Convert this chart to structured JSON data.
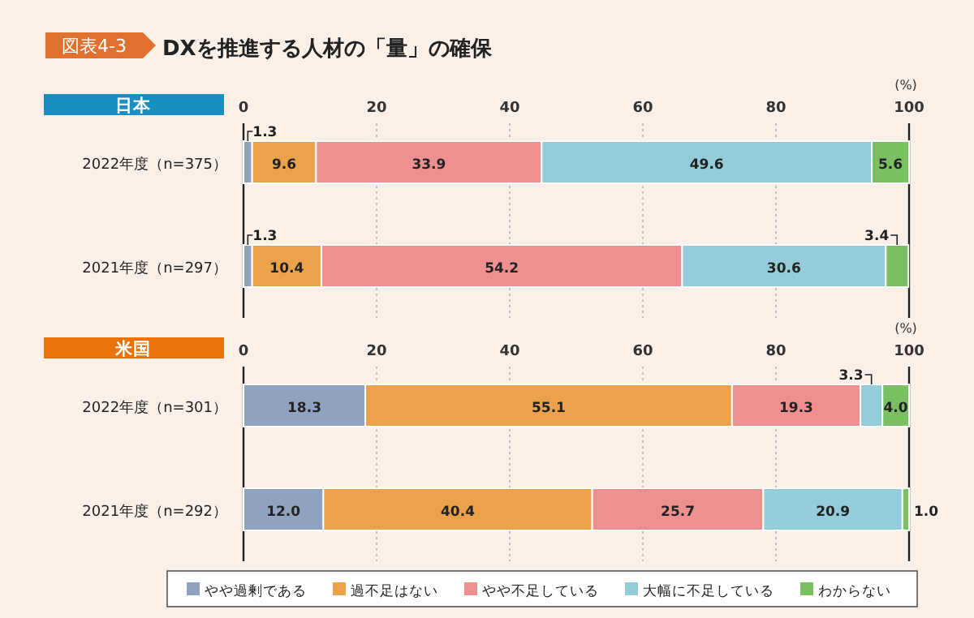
{
  "chart_data": [
    {
      "type": "bar",
      "orientation": "horizontal",
      "stacked": true,
      "title": "DXを推進する人材の「量」の確保",
      "subtitle": "日本",
      "annotations": [
        "図表4-3"
      ],
      "xlabel": "(%)",
      "categories": [
        "2022年度（n=375）",
        "2021年度（n=297）"
      ],
      "xlim": [
        0,
        100
      ],
      "xticks": [
        0,
        20,
        40,
        60,
        80,
        100
      ],
      "grid": "x",
      "series": [
        {
          "color": "#8fa3c0",
          "values": [
            1.3,
            1.3
          ],
          "value_labels": [
            "1.3",
            "1.3"
          ]
        },
        {
          "color": "#eca24a",
          "values": [
            9.6,
            10.4
          ],
          "value_labels": [
            "9.6",
            "10.4"
          ]
        },
        {
          "color": "#ef9090",
          "values": [
            33.9,
            54.2
          ],
          "value_labels": [
            "33.9",
            "54.2"
          ]
        },
        {
          "color": "#94cdd9",
          "values": [
            49.6,
            30.6
          ],
          "value_labels": [
            "49.6",
            "30.6"
          ]
        },
        {
          "color": "#7bbf63",
          "values": [
            5.6,
            3.4
          ],
          "value_labels": [
            "5.6",
            "3.4"
          ]
        }
      ]
    },
    {
      "type": "bar",
      "orientation": "horizontal",
      "stacked": true,
      "title": "米国",
      "xlabel": "(%)",
      "categories": [
        "2022年度（n=301）",
        "2021年度（n=292）"
      ],
      "xlim": [
        0,
        100
      ],
      "xticks": [
        0,
        20,
        40,
        60,
        80,
        100
      ],
      "grid": "x",
      "legend": "bottom",
      "series": [
        {
          "name": "やや過剰である",
          "color": "#8fa3c0",
          "values": [
            18.3,
            12.0
          ],
          "value_labels": [
            "18.3",
            "12.0"
          ]
        },
        {
          "name": "過不足はない",
          "color": "#eca24a",
          "values": [
            55.1,
            40.4
          ],
          "value_labels": [
            "55.1",
            "40.4"
          ]
        },
        {
          "name": "やや不足している",
          "color": "#ef9090",
          "values": [
            19.3,
            25.7
          ],
          "value_labels": [
            "19.3",
            "25.7"
          ]
        },
        {
          "name": "大幅に不足している",
          "color": "#94cdd9",
          "values": [
            3.3,
            20.9
          ],
          "value_labels": [
            "3.3",
            "20.9"
          ]
        },
        {
          "name": "わからない",
          "color": "#7bbf63",
          "values": [
            4.0,
            1.0
          ],
          "value_labels": [
            "4.0",
            "1.0"
          ]
        }
      ]
    }
  ]
}
